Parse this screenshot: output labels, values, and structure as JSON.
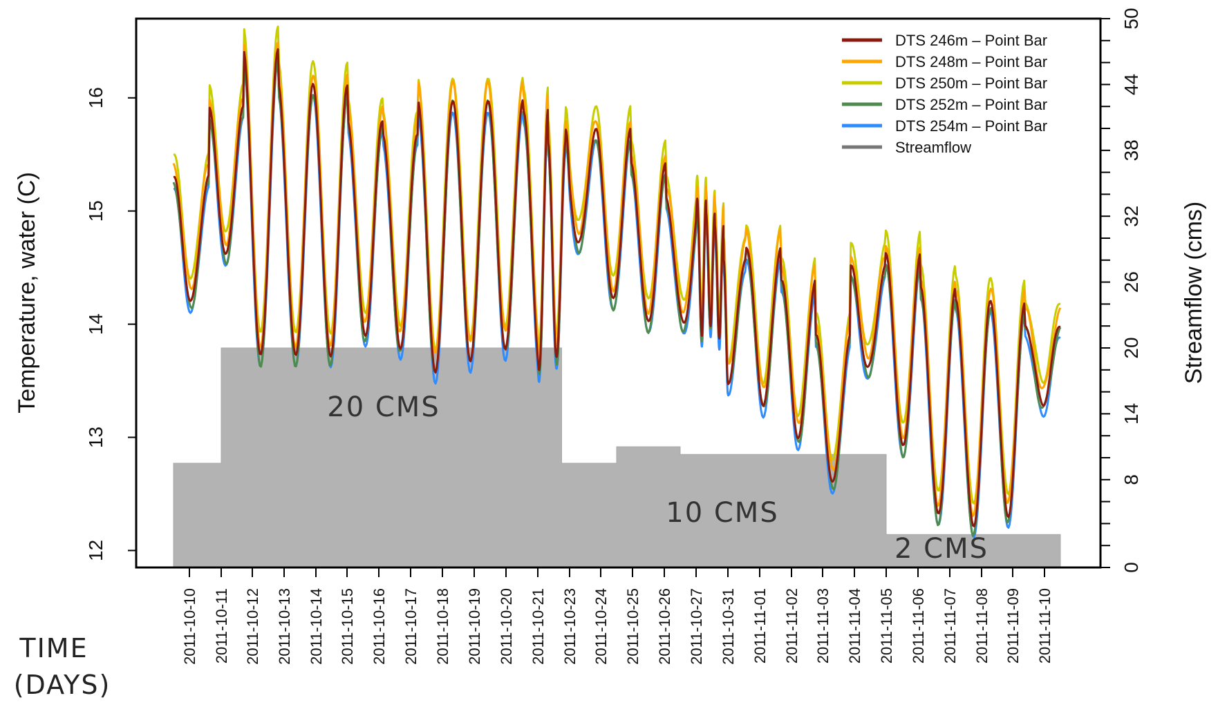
{
  "chart_data": {
    "type": "line",
    "title": "",
    "xlabel": "",
    "ylabel": "Temperature, water (C)",
    "y2label": "Streamflow (cms)",
    "ylim": [
      11.85,
      16.7
    ],
    "y2lim": [
      0,
      50
    ],
    "yticks": [
      12,
      13,
      14,
      15,
      16
    ],
    "y2ticks": [
      0,
      2,
      4,
      6,
      8,
      10,
      12,
      14,
      16,
      18,
      20,
      22,
      24,
      26,
      28,
      30,
      32,
      34,
      36,
      38,
      40,
      42,
      44,
      46,
      48,
      50
    ],
    "y2tick_labels": [
      "0",
      "8",
      "14",
      "20",
      "26",
      "32",
      "38",
      "44",
      "50"
    ],
    "x_start": "2011-10-09 12:00",
    "x_end": "2011-11-10 12:00",
    "x_tick_labels": [
      "2011-10-10",
      "2011-10-11",
      "2011-10-12",
      "2011-10-13",
      "2011-10-14",
      "2011-10-15",
      "2011-10-16",
      "2011-10-17",
      "2011-10-18",
      "2011-10-19",
      "2011-10-20",
      "2011-10-21",
      "2011-10-23",
      "2011-10-24",
      "2011-10-25",
      "2011-10-26",
      "2011-10-27",
      "2011-10-31",
      "2011-11-01",
      "2011-11-02",
      "2011-11-03",
      "2011-11-04",
      "2011-11-05",
      "2011-11-06",
      "2011-11-07",
      "2011-11-08",
      "2011-11-09",
      "2011-11-10"
    ],
    "legend_position": "top-right",
    "series": [
      {
        "name": "DTS 246m – Point Bar",
        "color": "#8b1a0e",
        "offset": 0.0
      },
      {
        "name": "DTS 248m – Point Bar",
        "color": "#ffa500",
        "offset": 0.12
      },
      {
        "name": "DTS 250m – Point Bar",
        "color": "#c8cd00",
        "offset": 0.2
      },
      {
        "name": "DTS 252m – Point Bar",
        "color": "#4f8a4f",
        "offset": -0.05
      },
      {
        "name": "DTS 254m – Point Bar",
        "color": "#2f8cff",
        "offset": -0.1
      }
    ],
    "peaks": [
      15.3,
      15.9,
      16.4,
      16.1,
      16.1,
      15.8,
      15.7,
      16.0,
      16.0,
      16.0,
      15.9,
      15.6,
      15.7,
      15.7,
      15.4,
      15.1,
      15.1,
      15.0,
      14.9,
      14.6,
      14.7,
      14.4,
      13.9,
      14.5,
      14.6,
      14.3,
      14.2,
      14.2,
      14.0
    ],
    "troughs": [
      14.2,
      14.6,
      13.7,
      13.7,
      13.7,
      13.9,
      13.8,
      13.6,
      13.7,
      13.8,
      13.6,
      13.7,
      14.7,
      14.2,
      14.0,
      14.0,
      13.9,
      14.0,
      13.9,
      13.5,
      13.3,
      13.0,
      12.6,
      13.6,
      12.9,
      12.3,
      12.2,
      12.3,
      13.3
    ],
    "streamflow": {
      "name": "Streamflow",
      "color": "#b3b3b3",
      "segments": [
        {
          "from": "2011-10-09 12:00",
          "to": "2011-10-11 00:00",
          "value": 9.5
        },
        {
          "from": "2011-10-11 00:00",
          "to": "2011-10-22 12:00",
          "value": 20
        },
        {
          "from": "2011-10-22 12:00",
          "to": "2011-10-24 12:00",
          "value": 9.5
        },
        {
          "from": "2011-10-24 12:00",
          "to": "2011-10-26 12:00",
          "value": 11
        },
        {
          "from": "2011-10-26 12:00",
          "to": "2011-11-05 00:00",
          "value": 10.3
        },
        {
          "from": "2011-11-05 00:00",
          "to": "2011-11-10 12:00",
          "value": 3
        }
      ]
    },
    "annotations": [
      "20 CMS",
      "10 CMS",
      "2 CMS"
    ]
  },
  "side_label": {
    "line1": "TIME",
    "line2": "(DAYS)"
  }
}
